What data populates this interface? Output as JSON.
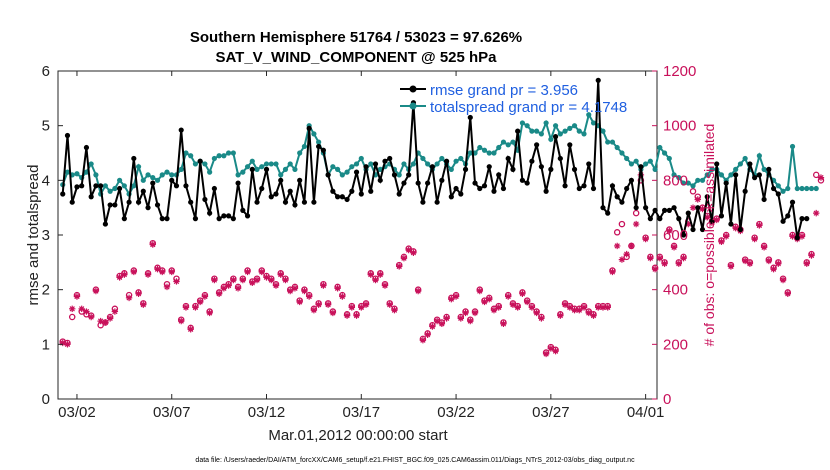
{
  "chart_data": {
    "type": "line",
    "title": "Southern Hemisphere 51764 / 53023 = 97.626%",
    "subtitle": "SAT_V_WIND_COMPONENT @ 525 hPa",
    "xlabel": "Mar.01,2012 00:00:00 start",
    "ylabel": "rmse and totalspread",
    "ylabel_right": "# of obs: o=possible; ∗=assimilated",
    "footnote": "data file: /Users/raeder/DAI/ATM_forcXX/CAM6_setup/f.e21.FHIST_BGC.f09_025.CAM6assim.011/Diags_NTrS_2012-03/obs_diag_output.nc",
    "xlim": [
      0,
      31.6
    ],
    "ylim": [
      0,
      6
    ],
    "ylim_right": [
      0,
      1200
    ],
    "x_tick_positions": [
      1,
      6,
      11,
      16,
      21,
      26,
      31
    ],
    "x_tick_labels": [
      "03/02",
      "03/07",
      "03/12",
      "03/17",
      "03/22",
      "03/27",
      "04/01"
    ],
    "y_ticks": [
      0,
      1,
      2,
      3,
      4,
      5,
      6
    ],
    "y_ticks_right": [
      0,
      200,
      400,
      600,
      800,
      1000,
      1200
    ],
    "legend_position": "top-right",
    "x_start": 0.25,
    "x_step": 0.25,
    "series": [
      {
        "name": "rmse grand pr = 3.956",
        "axis": "left",
        "color": "#000000",
        "values": [
          3.75,
          4.82,
          3.6,
          3.88,
          3.9,
          4.6,
          3.7,
          3.9,
          3.9,
          3.2,
          3.55,
          3.55,
          3.85,
          3.3,
          3.6,
          4.4,
          3.6,
          3.8,
          3.5,
          3.95,
          3.55,
          3.3,
          3.3,
          4.0,
          3.9,
          4.92,
          3.9,
          3.6,
          3.3,
          4.35,
          3.65,
          3.4,
          3.85,
          3.3,
          3.35,
          3.35,
          3.3,
          3.95,
          3.45,
          3.35,
          4.2,
          3.6,
          3.85,
          4.2,
          3.7,
          3.75,
          4.0,
          3.6,
          3.8,
          3.55,
          4.0,
          3.6,
          4.95,
          3.6,
          4.62,
          4.55,
          4.1,
          3.8,
          3.7,
          3.7,
          3.65,
          3.8,
          4.15,
          3.75,
          4.25,
          3.8,
          4.3,
          4.0,
          4.35,
          4.4,
          4.1,
          3.75,
          3.95,
          4.1,
          5.42,
          3.95,
          3.6,
          3.95,
          4.25,
          3.6,
          4.0,
          4.35,
          3.7,
          3.85,
          3.75,
          4.2,
          5.15,
          3.95,
          3.85,
          3.9,
          4.25,
          3.8,
          4.1,
          3.85,
          4.4,
          4.2,
          4.9,
          4.0,
          3.95,
          4.35,
          4.65,
          4.25,
          3.8,
          4.2,
          4.8,
          4.4,
          3.9,
          4.65,
          4.2,
          3.85,
          3.9,
          4.3,
          3.85,
          5.83,
          3.5,
          3.4,
          3.9,
          3.7,
          3.6,
          3.85,
          4.0,
          3.5,
          4.25,
          3.5,
          3.3,
          3.45,
          3.3,
          3.45,
          3.45,
          3.5,
          3.3,
          3.0,
          3.4,
          3.1,
          3.5,
          3.1,
          3.7,
          3.25,
          4.3,
          3.35,
          3.95,
          3.2,
          4.1,
          3.1,
          3.8,
          4.3,
          4.05,
          4.1,
          3.65,
          4.2,
          3.85,
          3.75,
          3.25,
          3.35,
          3.6,
          2.95,
          3.3,
          3.3
        ]
      },
      {
        "name": "totalspread grand pr = 4.1748",
        "axis": "left",
        "color": "#1a8a88",
        "values": [
          3.92,
          4.15,
          4.1,
          4.12,
          4.05,
          4.15,
          4.3,
          4.1,
          3.75,
          3.9,
          3.8,
          3.85,
          4.0,
          3.9,
          3.75,
          3.9,
          4.25,
          4.0,
          4.1,
          4.05,
          4.0,
          4.1,
          4.15,
          4.1,
          4.1,
          4.2,
          4.5,
          4.45,
          4.3,
          4.35,
          4.3,
          4.15,
          4.4,
          4.45,
          4.45,
          4.5,
          4.5,
          4.1,
          4.15,
          4.25,
          4.35,
          4.2,
          4.25,
          4.3,
          4.3,
          4.3,
          4.1,
          4.2,
          4.3,
          4.2,
          4.5,
          4.62,
          5.0,
          4.85,
          4.7,
          4.5,
          4.1,
          4.25,
          4.2,
          4.1,
          4.15,
          4.25,
          4.3,
          4.4,
          4.2,
          4.3,
          4.1,
          4.2,
          4.25,
          4.3,
          4.2,
          4.1,
          4.3,
          4.2,
          4.3,
          4.5,
          4.4,
          4.3,
          4.2,
          4.3,
          4.4,
          4.3,
          4.2,
          4.35,
          4.4,
          4.3,
          4.5,
          4.5,
          4.6,
          4.55,
          4.5,
          4.5,
          4.6,
          4.7,
          4.65,
          4.7,
          4.55,
          5.05,
          5.0,
          4.9,
          4.9,
          4.85,
          5.05,
          4.75,
          5.0,
          4.85,
          4.9,
          4.95,
          5.0,
          4.9,
          4.85,
          5.2,
          5.05,
          5.0,
          4.9,
          4.7,
          4.7,
          4.6,
          4.5,
          4.4,
          4.3,
          4.35,
          4.2,
          4.3,
          4.35,
          4.2,
          4.6,
          4.5,
          4.4,
          4.1,
          4.05,
          3.95,
          3.95,
          3.9,
          4.0,
          4.0,
          4.1,
          4.2,
          4.2,
          4.1,
          4.0,
          4.1,
          4.2,
          4.3,
          4.4,
          4.2,
          4.1,
          4.45,
          4.2,
          4.1,
          4.0,
          3.9,
          3.8,
          3.85,
          4.62,
          3.85,
          3.85,
          3.85,
          3.85,
          3.85
        ]
      },
      {
        "name": "possible",
        "axis": "right",
        "color": "#c8105a",
        "marker": "o",
        "values": [
          210,
          205,
          300,
          380,
          320,
          310,
          305,
          400,
          270,
          280,
          300,
          330,
          450,
          460,
          380,
          470,
          390,
          350,
          460,
          570,
          480,
          470,
          420,
          470,
          440,
          290,
          340,
          260,
          340,
          360,
          380,
          320,
          440,
          390,
          410,
          420,
          440,
          410,
          440,
          470,
          430,
          440,
          470,
          450,
          440,
          420,
          460,
          440,
          400,
          410,
          360,
          400,
          380,
          330,
          350,
          420,
          350,
          320,
          410,
          380,
          310,
          340,
          310,
          340,
          350,
          460,
          440,
          460,
          420,
          350,
          330,
          490,
          520,
          550,
          540,
          400,
          220,
          240,
          270,
          290,
          280,
          300,
          370,
          380,
          300,
          320,
          290,
          320,
          400,
          360,
          370,
          330,
          340,
          280,
          380,
          350,
          340,
          390,
          360,
          340,
          320,
          300,
          170,
          190,
          180,
          310,
          350,
          340,
          330,
          330,
          340,
          320,
          310,
          340,
          340,
          340,
          470,
          610,
          640,
          520,
          560,
          680,
          800,
          590,
          520,
          480,
          520,
          500,
          620,
          560,
          500,
          520,
          650,
          760,
          740,
          700,
          670,
          650,
          660,
          580,
          600,
          490,
          630,
          620,
          510,
          500,
          590,
          640,
          560,
          510,
          480,
          500,
          440,
          390,
          600,
          590,
          600,
          500,
          530,
          820,
          800
        ]
      },
      {
        "name": "assimilated",
        "axis": "right",
        "color": "#c8105a",
        "marker": "*",
        "values": [
          205,
          200,
          330,
          375,
          330,
          320,
          300,
          395,
          285,
          280,
          295,
          320,
          445,
          455,
          370,
          465,
          385,
          345,
          455,
          565,
          475,
          465,
          410,
          465,
          430,
          285,
          335,
          255,
          335,
          355,
          375,
          315,
          435,
          385,
          405,
          415,
          435,
          405,
          435,
          465,
          425,
          435,
          465,
          445,
          435,
          415,
          455,
          435,
          395,
          405,
          355,
          395,
          375,
          325,
          345,
          415,
          345,
          315,
          405,
          375,
          305,
          335,
          305,
          335,
          345,
          455,
          435,
          455,
          415,
          345,
          325,
          485,
          515,
          545,
          535,
          395,
          215,
          235,
          265,
          285,
          275,
          295,
          365,
          375,
          295,
          315,
          285,
          315,
          395,
          355,
          365,
          325,
          335,
          275,
          375,
          345,
          335,
          385,
          355,
          335,
          315,
          295,
          165,
          185,
          175,
          305,
          345,
          335,
          325,
          325,
          335,
          315,
          305,
          335,
          335,
          335,
          465,
          560,
          510,
          530,
          560,
          640,
          820,
          585,
          515,
          475,
          515,
          495,
          615,
          555,
          495,
          515,
          640,
          700,
          730,
          695,
          665,
          645,
          655,
          575,
          595,
          485,
          625,
          615,
          505,
          495,
          585,
          635,
          555,
          505,
          475,
          495,
          435,
          385,
          595,
          585,
          595,
          495,
          525,
          680,
          810
        ]
      }
    ]
  }
}
